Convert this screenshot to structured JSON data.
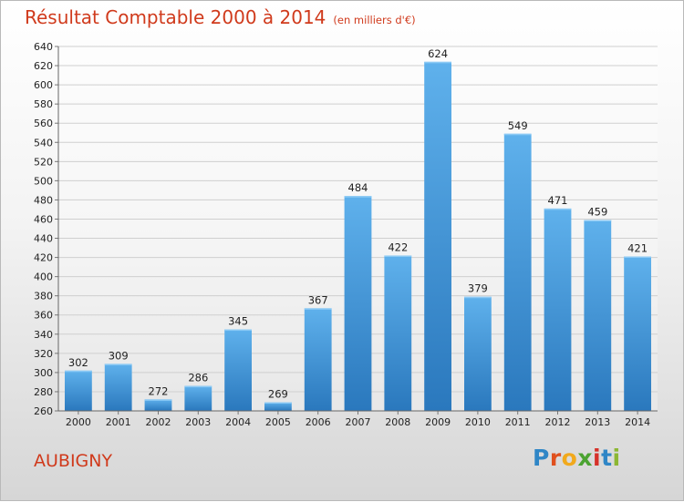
{
  "chart_data": {
    "type": "bar",
    "title": "Résultat Comptable 2000 à 2014",
    "subtitle": "(en milliers d'€)",
    "categories": [
      "2000",
      "2001",
      "2002",
      "2003",
      "2004",
      "2005",
      "2006",
      "2007",
      "2008",
      "2009",
      "2010",
      "2011",
      "2012",
      "2013",
      "2014"
    ],
    "values": [
      302,
      309,
      272,
      286,
      345,
      269,
      367,
      484,
      422,
      624,
      379,
      549,
      471,
      459,
      421
    ],
    "xlabel": "",
    "ylabel": "",
    "ylim": [
      260,
      640
    ],
    "ytick_step": 20,
    "grid": true,
    "legend": "none",
    "bar_color": "#3d93d8"
  },
  "commune": "AUBIGNY",
  "logo": {
    "text": "Proxiti",
    "letter_colors": [
      "#2f86c6",
      "#e0501e",
      "#f1a91c",
      "#4ba331",
      "#d6322a",
      "#2f86c6",
      "#8cb733"
    ]
  }
}
